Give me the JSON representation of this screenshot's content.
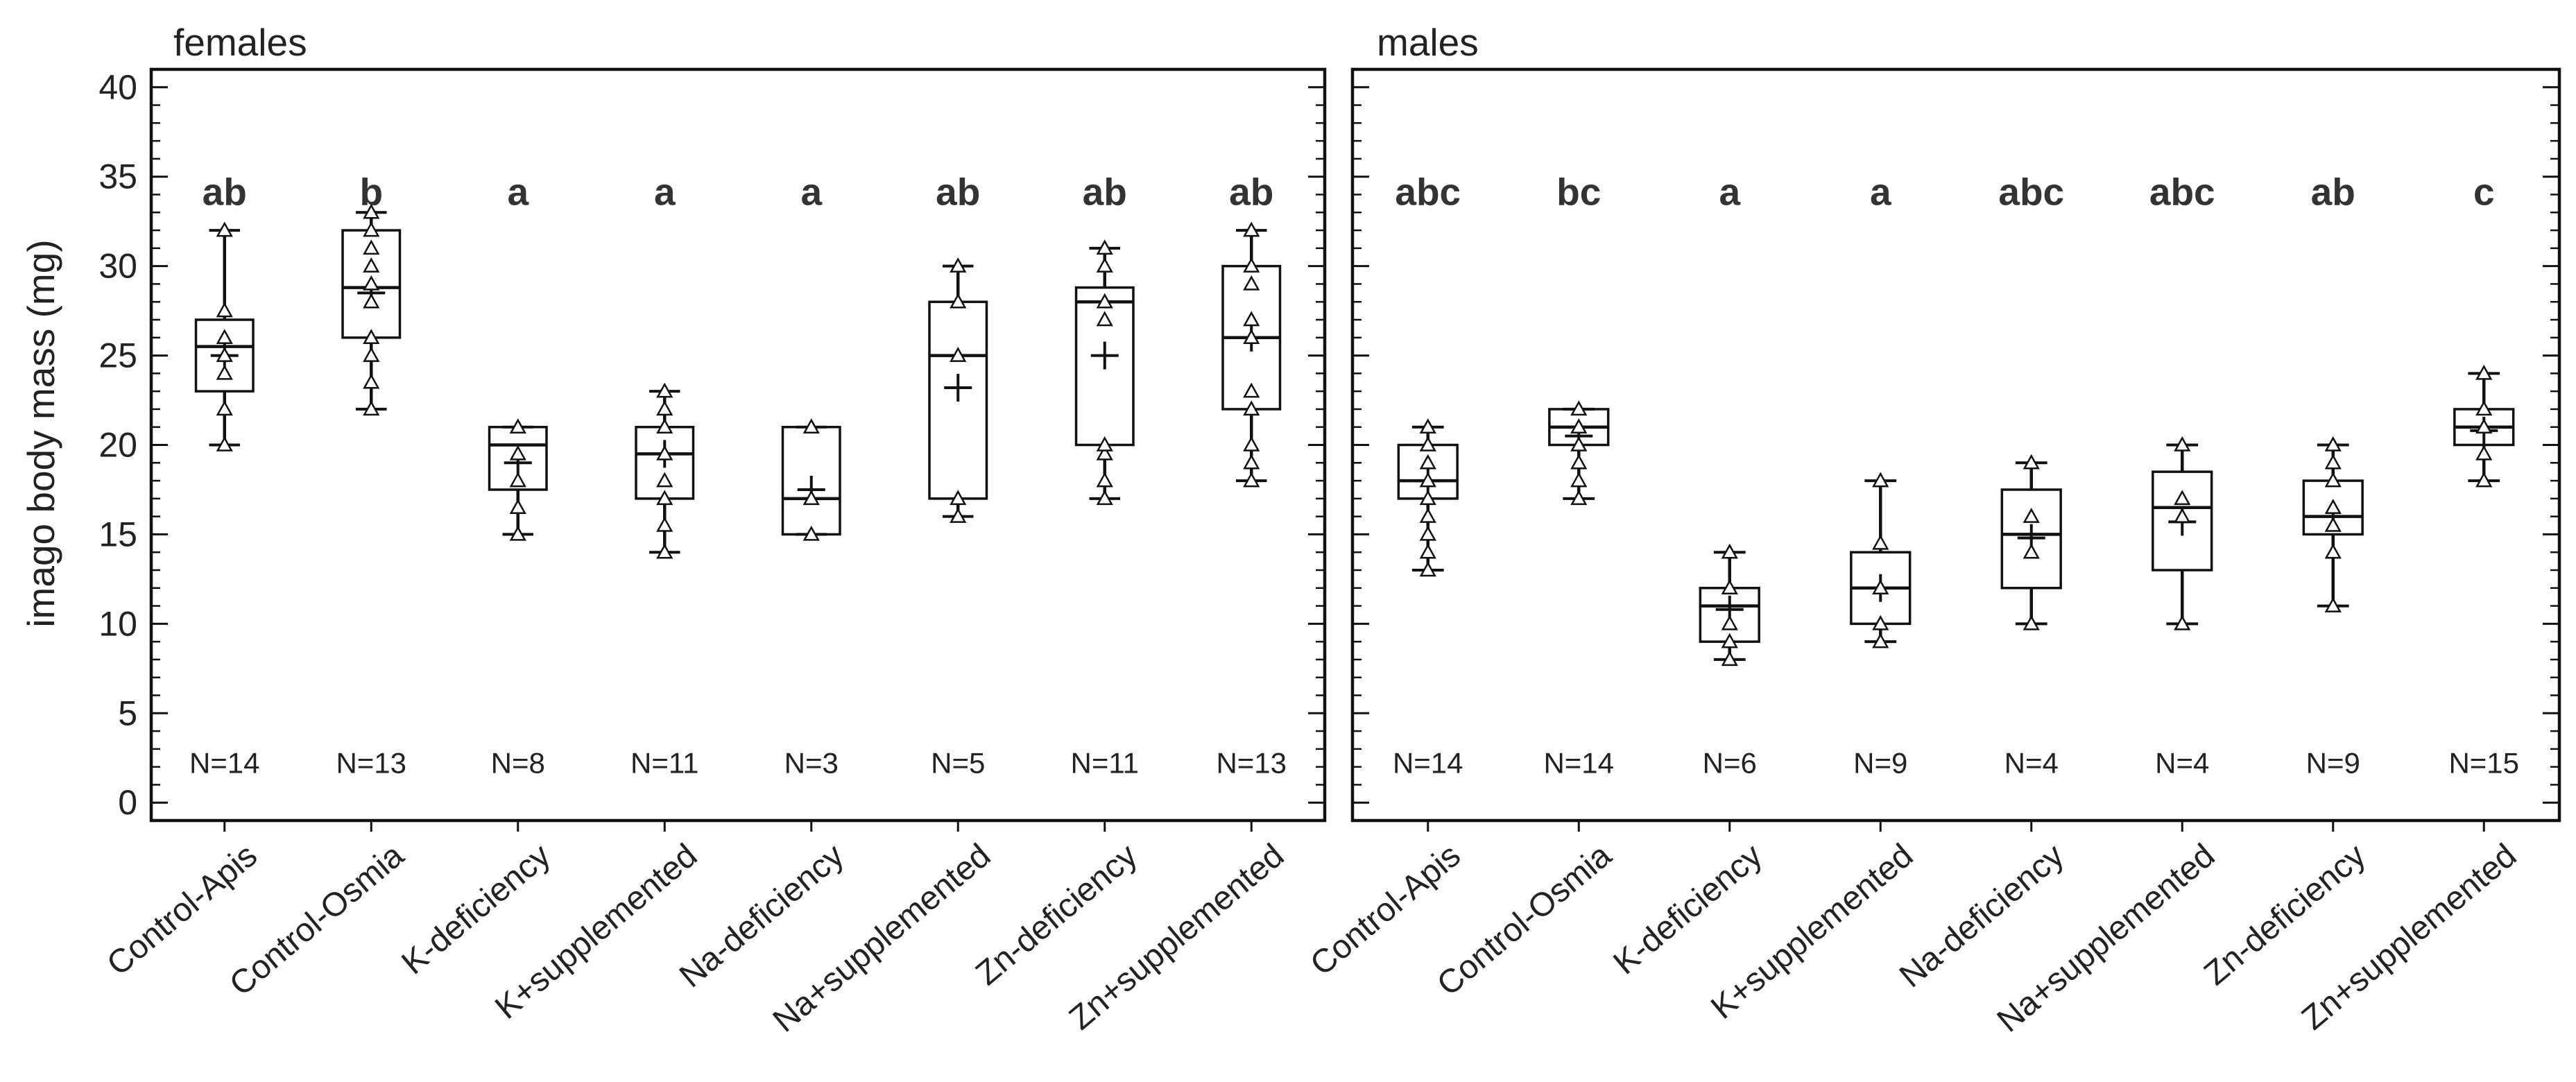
{
  "chart_data": {
    "type": "boxplot",
    "ylabel": "imago body mass (mg)",
    "ylim": [
      -1,
      41
    ],
    "yticks": [
      0,
      5,
      10,
      15,
      20,
      25,
      30,
      35,
      40
    ],
    "categories": [
      "Control-Apis",
      "Control-Osmia",
      "K-deficiency",
      "K+supplemented",
      "Na-deficiency",
      "Na+supplemented",
      "Zn-deficiency",
      "Zn+supplemented"
    ],
    "panels": [
      {
        "title": "females",
        "groups": [
          {
            "category": "Control-Apis",
            "letter": "ab",
            "n": "N=14",
            "q1": 23,
            "median": 25.5,
            "q3": 27,
            "whisker_low": 20,
            "whisker_high": 32,
            "mean": 25,
            "points": [
              20,
              22,
              24,
              25,
              26,
              27.5,
              32
            ]
          },
          {
            "category": "Control-Osmia",
            "letter": "b",
            "n": "N=13",
            "q1": 26,
            "median": 28.8,
            "q3": 32,
            "whisker_low": 22,
            "whisker_high": 33,
            "mean": 28.5,
            "points": [
              22,
              23.5,
              25,
              26,
              28,
              29,
              30,
              31,
              32,
              33
            ]
          },
          {
            "category": "K-deficiency",
            "letter": "a",
            "n": "N=8",
            "q1": 17.5,
            "median": 20,
            "q3": 21,
            "whisker_low": 15,
            "whisker_high": 21,
            "mean": 19,
            "points": [
              15,
              16.5,
              18,
              19.5,
              21
            ]
          },
          {
            "category": "K+supplemented",
            "letter": "a",
            "n": "N=11",
            "q1": 17,
            "median": 19.5,
            "q3": 21,
            "whisker_low": 14,
            "whisker_high": 23,
            "mean": 19.5,
            "points": [
              14,
              15.5,
              17,
              18,
              19.5,
              21,
              22,
              23
            ]
          },
          {
            "category": "Na-deficiency",
            "letter": "a",
            "n": "N=3",
            "q1": 15,
            "median": 17,
            "q3": 21,
            "whisker_low": 15,
            "whisker_high": 21,
            "mean": 17.5,
            "points": [
              15,
              17,
              21
            ]
          },
          {
            "category": "Na+supplemented",
            "letter": "ab",
            "n": "N=5",
            "q1": 17,
            "median": 25,
            "q3": 28,
            "whisker_low": 16,
            "whisker_high": 30,
            "mean": 23.2,
            "points": [
              16,
              17,
              25,
              28,
              30
            ]
          },
          {
            "category": "Zn-deficiency",
            "letter": "ab",
            "n": "N=11",
            "q1": 20,
            "median": 28,
            "q3": 28.8,
            "whisker_low": 17,
            "whisker_high": 31,
            "mean": 25,
            "points": [
              17,
              18,
              19.5,
              20,
              27,
              28,
              30,
              31
            ]
          },
          {
            "category": "Zn+supplemented",
            "letter": "ab",
            "n": "N=13",
            "q1": 22,
            "median": 26,
            "q3": 30,
            "whisker_low": 18,
            "whisker_high": 32,
            "mean": 26,
            "points": [
              18,
              19,
              20,
              22,
              23,
              26,
              27,
              29,
              30,
              32
            ]
          }
        ]
      },
      {
        "title": "males",
        "groups": [
          {
            "category": "Control-Apis",
            "letter": "abc",
            "n": "N=14",
            "q1": 17,
            "median": 18,
            "q3": 20,
            "whisker_low": 13,
            "whisker_high": 21,
            "mean": 18,
            "points": [
              13,
              14,
              15,
              16,
              17,
              18,
              19,
              20,
              21
            ]
          },
          {
            "category": "Control-Osmia",
            "letter": "bc",
            "n": "N=14",
            "q1": 20,
            "median": 21,
            "q3": 22,
            "whisker_low": 17,
            "whisker_high": 22,
            "mean": 20.5,
            "points": [
              17,
              18,
              19,
              20,
              21,
              22
            ]
          },
          {
            "category": "K-deficiency",
            "letter": "a",
            "n": "N=6",
            "q1": 9,
            "median": 11,
            "q3": 12,
            "whisker_low": 8,
            "whisker_high": 14,
            "mean": 10.8,
            "points": [
              8,
              9,
              10,
              12,
              14
            ]
          },
          {
            "category": "K+supplemented",
            "letter": "a",
            "n": "N=9",
            "q1": 10,
            "median": 12,
            "q3": 14,
            "whisker_low": 9,
            "whisker_high": 18,
            "mean": 12,
            "points": [
              9,
              10,
              12,
              14.5,
              18
            ]
          },
          {
            "category": "Na-deficiency",
            "letter": "abc",
            "n": "N=4",
            "q1": 12,
            "median": 15,
            "q3": 17.5,
            "whisker_low": 10,
            "whisker_high": 19,
            "mean": 14.8,
            "points": [
              10,
              14,
              16,
              19
            ]
          },
          {
            "category": "Na+supplemented",
            "letter": "abc",
            "n": "N=4",
            "q1": 13,
            "median": 16.5,
            "q3": 18.5,
            "whisker_low": 10,
            "whisker_high": 20,
            "mean": 15.7,
            "points": [
              10,
              16,
              17,
              20
            ]
          },
          {
            "category": "Zn-deficiency",
            "letter": "ab",
            "n": "N=9",
            "q1": 15,
            "median": 16,
            "q3": 18,
            "whisker_low": 11,
            "whisker_high": 20,
            "mean": 16,
            "points": [
              11,
              14,
              15.5,
              16.5,
              18,
              19,
              20
            ]
          },
          {
            "category": "Zn+supplemented",
            "letter": "c",
            "n": "N=15",
            "q1": 20,
            "median": 21,
            "q3": 22,
            "whisker_low": 18,
            "whisker_high": 24,
            "mean": 20.8,
            "points": [
              18,
              19.5,
              21,
              22,
              24
            ]
          }
        ]
      }
    ]
  }
}
